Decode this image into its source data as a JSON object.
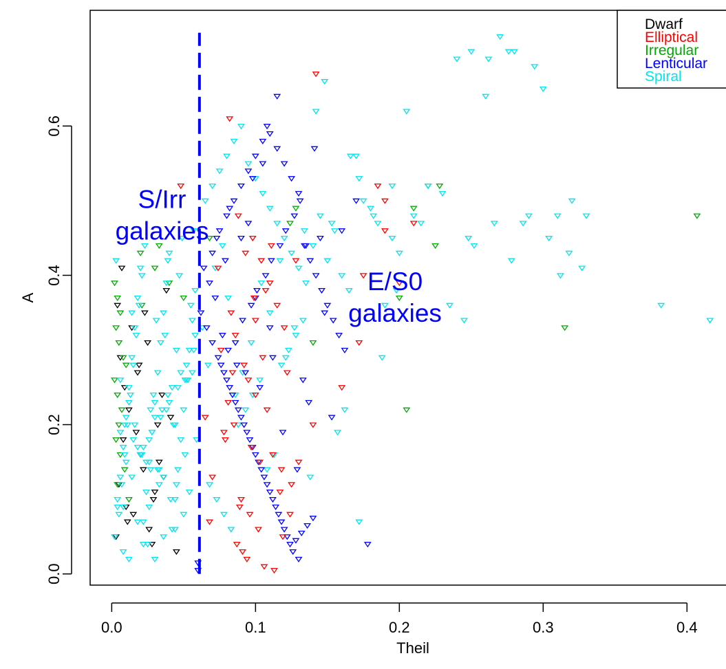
{
  "chart_data": {
    "type": "scatter",
    "title": "",
    "xlabel": "Theil",
    "ylabel": "A",
    "xlim": [
      -0.015,
      0.43
    ],
    "ylim": [
      -0.015,
      0.755
    ],
    "x_ticks": [
      0.0,
      0.1,
      0.2,
      0.3,
      0.4
    ],
    "x_tick_labels": [
      "0.0",
      "0.1",
      "0.2",
      "0.3",
      "0.4"
    ],
    "y_ticks": [
      0.0,
      0.2,
      0.4,
      0.6
    ],
    "y_tick_labels": [
      "0.0",
      "0.2",
      "0.4",
      "0.6"
    ],
    "grid": false,
    "marker": "inverted-triangle-open",
    "legend": {
      "position": "top-right",
      "entries": [
        {
          "name": "Dwarf",
          "color": "#000000"
        },
        {
          "name": "Elliptical",
          "color": "#ff0000"
        },
        {
          "name": "Irregular",
          "color": "#00aa00"
        },
        {
          "name": "Lenticular",
          "color": "#0000ff"
        },
        {
          "name": "Spiral",
          "color": "#00e5ee"
        }
      ]
    },
    "reference_line": {
      "x": 0.061,
      "y_range": [
        0.0,
        0.725
      ],
      "color": "#0000ff",
      "style": "dashed"
    },
    "annotations": [
      {
        "text_lines": [
          "S/Irr",
          "galaxies"
        ],
        "x": 0.035,
        "y": 0.49,
        "color": "#0000ff"
      },
      {
        "text_lines": [
          "E/S0",
          "galaxies"
        ],
        "x": 0.197,
        "y": 0.38,
        "color": "#0000ff"
      }
    ],
    "series": [
      {
        "name": "Dwarf",
        "color": "#000000",
        "x": [
          0.003,
          0.005,
          0.008,
          0.012,
          0.015,
          0.018,
          0.022,
          0.025,
          0.028,
          0.032,
          0.035,
          0.004,
          0.006,
          0.01,
          0.02,
          0.03,
          0.038,
          0.041,
          0.014,
          0.026,
          0.009,
          0.017,
          0.033,
          0.045,
          0.011,
          0.007,
          0.023,
          0.029,
          0.019,
          0.036
        ],
        "y": [
          0.05,
          0.12,
          0.18,
          0.22,
          0.08,
          0.27,
          0.14,
          0.31,
          0.04,
          0.2,
          0.24,
          0.36,
          0.29,
          0.09,
          0.16,
          0.11,
          0.38,
          0.21,
          0.33,
          0.06,
          0.25,
          0.19,
          0.15,
          0.03,
          0.07,
          0.41,
          0.35,
          0.1,
          0.28,
          0.13
        ]
      },
      {
        "name": "Elliptical",
        "color": "#ff0000",
        "x": [
          0.048,
          0.082,
          0.088,
          0.098,
          0.104,
          0.11,
          0.115,
          0.12,
          0.076,
          0.092,
          0.095,
          0.1,
          0.108,
          0.085,
          0.079,
          0.112,
          0.118,
          0.125,
          0.09,
          0.096,
          0.102,
          0.087,
          0.094,
          0.106,
          0.113,
          0.083,
          0.099,
          0.142,
          0.14,
          0.175,
          0.172,
          0.185,
          0.19,
          0.2,
          0.19,
          0.21,
          0.16,
          0.13,
          0.128,
          0.122,
          0.117,
          0.105,
          0.097,
          0.093,
          0.089,
          0.086,
          0.081,
          0.078,
          0.074,
          0.07,
          0.068,
          0.065,
          0.1,
          0.107,
          0.111,
          0.119,
          0.124,
          0.103,
          0.091,
          0.084
        ],
        "y": [
          0.52,
          0.61,
          0.48,
          0.45,
          0.42,
          0.39,
          0.36,
          0.33,
          0.3,
          0.28,
          0.26,
          0.24,
          0.22,
          0.2,
          0.18,
          0.16,
          0.14,
          0.12,
          0.1,
          0.08,
          0.06,
          0.04,
          0.02,
          0.01,
          0.005,
          0.35,
          0.37,
          0.67,
          0.2,
          0.4,
          0.31,
          0.52,
          0.46,
          0.39,
          0.5,
          0.47,
          0.25,
          0.15,
          0.42,
          0.27,
          0.11,
          0.29,
          0.17,
          0.43,
          0.09,
          0.32,
          0.23,
          0.19,
          0.41,
          0.13,
          0.07,
          0.21,
          0.34,
          0.38,
          0.44,
          0.05,
          0.08,
          0.15,
          0.03,
          0.27
        ]
      },
      {
        "name": "Irregular",
        "color": "#00aa00",
        "x": [
          0.002,
          0.004,
          0.006,
          0.003,
          0.005,
          0.008,
          0.01,
          0.002,
          0.004,
          0.007,
          0.005,
          0.003,
          0.006,
          0.009,
          0.004,
          0.012,
          0.02,
          0.03,
          0.04,
          0.05,
          0.068,
          0.124,
          0.128,
          0.14,
          0.2,
          0.205,
          0.21,
          0.225,
          0.228,
          0.22,
          0.315,
          0.407,
          0.021,
          0.033
        ],
        "y": [
          0.39,
          0.37,
          0.35,
          0.33,
          0.31,
          0.29,
          0.28,
          0.26,
          0.24,
          0.22,
          0.2,
          0.18,
          0.16,
          0.14,
          0.12,
          0.1,
          0.43,
          0.41,
          0.39,
          0.37,
          0.45,
          0.47,
          0.49,
          0.31,
          0.37,
          0.22,
          0.49,
          0.44,
          0.52,
          0.52,
          0.33,
          0.48,
          0.36,
          0.44
        ]
      },
      {
        "name": "Lenticular",
        "color": "#0000ff",
        "x": [
          0.062,
          0.066,
          0.07,
          0.074,
          0.078,
          0.082,
          0.086,
          0.09,
          0.094,
          0.098,
          0.102,
          0.106,
          0.11,
          0.114,
          0.118,
          0.122,
          0.126,
          0.13,
          0.134,
          0.138,
          0.142,
          0.146,
          0.15,
          0.154,
          0.158,
          0.162,
          0.075,
          0.08,
          0.085,
          0.09,
          0.095,
          0.1,
          0.105,
          0.11,
          0.115,
          0.12,
          0.125,
          0.13,
          0.064,
          0.068,
          0.072,
          0.076,
          0.08,
          0.084,
          0.088,
          0.092,
          0.096,
          0.1,
          0.104,
          0.108,
          0.112,
          0.116,
          0.12,
          0.124,
          0.128,
          0.132,
          0.136,
          0.14,
          0.07,
          0.073,
          0.077,
          0.081,
          0.087,
          0.091,
          0.097,
          0.101,
          0.107,
          0.111,
          0.117,
          0.121,
          0.127,
          0.131,
          0.115,
          0.108,
          0.178,
          0.17,
          0.105,
          0.098,
          0.09,
          0.082,
          0.079,
          0.095,
          0.1,
          0.11,
          0.06,
          0.06,
          0.141,
          0.16,
          0.145,
          0.135,
          0.148,
          0.133,
          0.137,
          0.153,
          0.093,
          0.086,
          0.103,
          0.112,
          0.119,
          0.129
        ],
        "y": [
          0.35,
          0.33,
          0.31,
          0.29,
          0.27,
          0.25,
          0.23,
          0.21,
          0.19,
          0.17,
          0.15,
          0.13,
          0.11,
          0.09,
          0.07,
          0.05,
          0.03,
          0.02,
          0.44,
          0.42,
          0.4,
          0.38,
          0.36,
          0.34,
          0.32,
          0.3,
          0.46,
          0.48,
          0.5,
          0.52,
          0.54,
          0.56,
          0.58,
          0.59,
          0.57,
          0.55,
          0.53,
          0.51,
          0.41,
          0.39,
          0.37,
          0.28,
          0.26,
          0.24,
          0.22,
          0.2,
          0.18,
          0.16,
          0.14,
          0.12,
          0.1,
          0.08,
          0.06,
          0.04,
          0.045,
          0.055,
          0.065,
          0.075,
          0.43,
          0.45,
          0.32,
          0.3,
          0.28,
          0.34,
          0.36,
          0.38,
          0.4,
          0.42,
          0.44,
          0.46,
          0.48,
          0.5,
          0.64,
          0.6,
          0.04,
          0.5,
          0.55,
          0.53,
          0.45,
          0.49,
          0.42,
          0.47,
          0.37,
          0.33,
          0.015,
          0.005,
          0.57,
          0.46,
          0.45,
          0.44,
          0.35,
          0.26,
          0.23,
          0.21,
          0.27,
          0.31,
          0.25,
          0.29,
          0.19,
          0.14
        ]
      },
      {
        "name": "Spiral",
        "color": "#00e5ee",
        "x": [
          0.002,
          0.004,
          0.006,
          0.008,
          0.01,
          0.012,
          0.014,
          0.016,
          0.018,
          0.02,
          0.022,
          0.024,
          0.026,
          0.028,
          0.03,
          0.032,
          0.034,
          0.036,
          0.038,
          0.04,
          0.042,
          0.044,
          0.046,
          0.048,
          0.05,
          0.052,
          0.054,
          0.056,
          0.058,
          0.003,
          0.005,
          0.007,
          0.009,
          0.011,
          0.013,
          0.015,
          0.017,
          0.019,
          0.021,
          0.023,
          0.025,
          0.027,
          0.029,
          0.031,
          0.033,
          0.035,
          0.037,
          0.039,
          0.041,
          0.043,
          0.045,
          0.047,
          0.049,
          0.051,
          0.053,
          0.055,
          0.057,
          0.059,
          0.006,
          0.012,
          0.018,
          0.024,
          0.03,
          0.036,
          0.042,
          0.048,
          0.054,
          0.009,
          0.015,
          0.021,
          0.027,
          0.033,
          0.039,
          0.045,
          0.051,
          0.057,
          0.004,
          0.01,
          0.016,
          0.022,
          0.028,
          0.034,
          0.04,
          0.046,
          0.052,
          0.058,
          0.008,
          0.014,
          0.02,
          0.026,
          0.032,
          0.038,
          0.044,
          0.05,
          0.056,
          0.065,
          0.07,
          0.075,
          0.08,
          0.085,
          0.09,
          0.095,
          0.1,
          0.105,
          0.11,
          0.115,
          0.12,
          0.125,
          0.13,
          0.135,
          0.068,
          0.073,
          0.078,
          0.083,
          0.088,
          0.093,
          0.098,
          0.103,
          0.108,
          0.113,
          0.118,
          0.123,
          0.128,
          0.133,
          0.14,
          0.145,
          0.15,
          0.155,
          0.16,
          0.165,
          0.17,
          0.175,
          0.18,
          0.185,
          0.19,
          0.195,
          0.2,
          0.21,
          0.22,
          0.23,
          0.24,
          0.25,
          0.26,
          0.27,
          0.28,
          0.29,
          0.3,
          0.31,
          0.32,
          0.33,
          0.148,
          0.142,
          0.153,
          0.172,
          0.166,
          0.182,
          0.195,
          0.205,
          0.215,
          0.235,
          0.248,
          0.252,
          0.262,
          0.276,
          0.294,
          0.318,
          0.304,
          0.382,
          0.416,
          0.286,
          0.278,
          0.327,
          0.312,
          0.266,
          0.245,
          0.198,
          0.188,
          0.157,
          0.162,
          0.172,
          0.138,
          0.134,
          0.127,
          0.121,
          0.117,
          0.11,
          0.104,
          0.097,
          0.091,
          0.086,
          0.081,
          0.077,
          0.072,
          0.067,
          0.063,
          0.012,
          0.008,
          0.022,
          0.03,
          0.044,
          0.018,
          0.026,
          0.036,
          0.006,
          0.014
        ],
        "y": [
          0.05,
          0.09,
          0.13,
          0.17,
          0.21,
          0.25,
          0.29,
          0.33,
          0.37,
          0.41,
          0.07,
          0.11,
          0.15,
          0.19,
          0.23,
          0.27,
          0.31,
          0.35,
          0.39,
          0.43,
          0.06,
          0.1,
          0.14,
          0.18,
          0.22,
          0.26,
          0.3,
          0.34,
          0.38,
          0.42,
          0.08,
          0.12,
          0.16,
          0.2,
          0.24,
          0.28,
          0.32,
          0.36,
          0.4,
          0.44,
          0.04,
          0.14,
          0.24,
          0.34,
          0.12,
          0.22,
          0.32,
          0.42,
          0.1,
          0.2,
          0.3,
          0.4,
          0.45,
          0.16,
          0.26,
          0.36,
          0.46,
          0.18,
          0.19,
          0.23,
          0.17,
          0.15,
          0.21,
          0.13,
          0.25,
          0.27,
          0.11,
          0.2,
          0.18,
          0.16,
          0.22,
          0.14,
          0.24,
          0.12,
          0.26,
          0.3,
          0.1,
          0.15,
          0.2,
          0.17,
          0.19,
          0.21,
          0.23,
          0.25,
          0.28,
          0.32,
          0.09,
          0.13,
          0.16,
          0.18,
          0.14,
          0.22,
          0.2,
          0.08,
          0.27,
          0.5,
          0.52,
          0.54,
          0.56,
          0.58,
          0.6,
          0.55,
          0.53,
          0.51,
          0.49,
          0.47,
          0.45,
          0.43,
          0.41,
          0.39,
          0.12,
          0.1,
          0.08,
          0.06,
          0.2,
          0.22,
          0.24,
          0.26,
          0.14,
          0.16,
          0.28,
          0.3,
          0.32,
          0.34,
          0.44,
          0.48,
          0.42,
          0.46,
          0.4,
          0.38,
          0.56,
          0.5,
          0.49,
          0.47,
          0.36,
          0.45,
          0.43,
          0.48,
          0.52,
          0.51,
          0.69,
          0.7,
          0.64,
          0.72,
          0.7,
          0.48,
          0.65,
          0.48,
          0.5,
          0.48,
          0.66,
          0.62,
          0.47,
          0.53,
          0.56,
          0.48,
          0.52,
          0.62,
          0.47,
          0.36,
          0.45,
          0.44,
          0.69,
          0.7,
          0.68,
          0.43,
          0.45,
          0.36,
          0.34,
          0.47,
          0.42,
          0.41,
          0.4,
          0.47,
          0.34,
          0.38,
          0.29,
          0.19,
          0.22,
          0.07,
          0.13,
          0.46,
          0.33,
          0.29,
          0.42,
          0.35,
          0.39,
          0.31,
          0.27,
          0.24,
          0.37,
          0.44,
          0.41,
          0.28,
          0.33,
          0.02,
          0.03,
          0.04,
          0.02,
          0.06,
          0.07,
          0.09,
          0.05,
          0.26,
          0.35
        ]
      }
    ]
  }
}
